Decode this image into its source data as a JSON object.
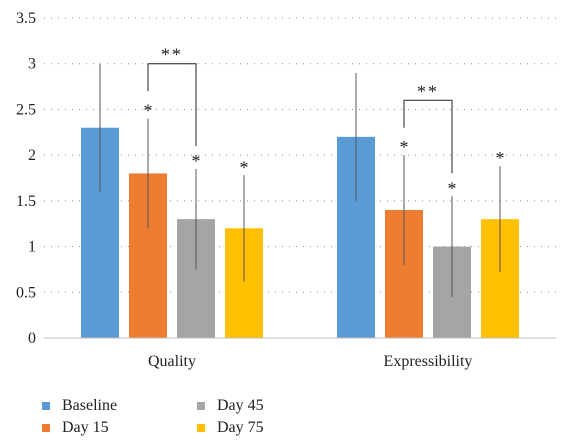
{
  "chart_data": {
    "type": "bar",
    "categories": [
      "Quality",
      "Expressibility"
    ],
    "series": [
      {
        "name": "Baseline",
        "color": "#5b9bd5",
        "values": [
          2.3,
          2.2
        ],
        "error": [
          0.7,
          0.7
        ],
        "marks": [
          "",
          ""
        ]
      },
      {
        "name": "Day 15",
        "color": "#ed7d31",
        "values": [
          1.8,
          1.4
        ],
        "error": [
          0.6,
          0.6
        ],
        "marks": [
          "*",
          "*"
        ]
      },
      {
        "name": "Day 45",
        "color": "#a5a5a5",
        "values": [
          1.3,
          1.0
        ],
        "error": [
          0.55,
          0.55
        ],
        "marks": [
          "*",
          "*"
        ]
      },
      {
        "name": "Day 75",
        "color": "#ffc000",
        "values": [
          1.2,
          1.3
        ],
        "error": [
          0.58,
          0.58
        ],
        "marks": [
          "*",
          "*"
        ]
      }
    ],
    "significance": [
      {
        "category": "Quality",
        "from_series": "Day 15",
        "to_series": "Day 45",
        "label": "**"
      },
      {
        "category": "Expressibility",
        "from_series": "Day 15",
        "to_series": "Day 45",
        "label": "**"
      }
    ],
    "yticks": [
      "0",
      "0.5",
      "1",
      "1.5",
      "2",
      "2.5",
      "3",
      "3.5"
    ],
    "ylim": [
      0,
      3.5
    ],
    "title": "",
    "xlabel": "",
    "ylabel": "",
    "grid": "horizontal dotted",
    "legend_position": "bottom-left"
  }
}
